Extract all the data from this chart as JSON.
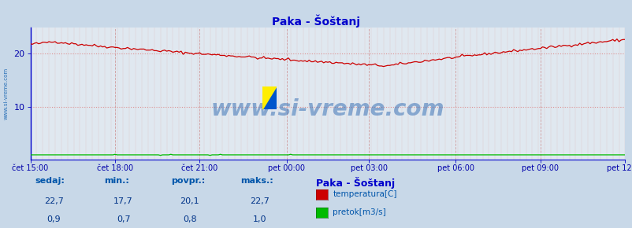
{
  "title": "Paka - Šoštanj",
  "bg_color": "#c8d8e8",
  "plot_bg_color": "#e0e8f0",
  "title_color": "#0000cc",
  "xlabel_color": "#0000aa",
  "ylabel_color": "#0000aa",
  "x_tick_labels": [
    "čet 15:00",
    "čet 18:00",
    "čet 21:00",
    "pet 00:00",
    "pet 03:00",
    "pet 06:00",
    "pet 09:00",
    "pet 12:00"
  ],
  "x_tick_positions_frac": [
    0.0,
    0.143,
    0.286,
    0.429,
    0.571,
    0.714,
    0.857,
    1.0
  ],
  "ylim": [
    0,
    25
  ],
  "y_ticks": [
    10,
    20
  ],
  "temp_color": "#cc0000",
  "flow_color": "#00bb00",
  "dotted_line_values": [
    10.0,
    20.0
  ],
  "watermark": "www.si-vreme.com",
  "watermark_color": "#1a5aaa",
  "footer_label_color": "#0055aa",
  "footer_value_color": "#003388",
  "sedaj_temp": "22,7",
  "min_temp": "17,7",
  "povpr_temp": "20,1",
  "maks_temp": "22,7",
  "sedaj_flow": "0,9",
  "min_flow": "0,7",
  "povpr_flow": "0,8",
  "maks_flow": "1,0",
  "n_points": 289,
  "vgrid_major_color": "#cc8888",
  "vgrid_minor_color": "#ddaaaa",
  "hgrid_color": "#dd8888",
  "border_color": "#0000cc",
  "sidebar_text": "www.si-vreme.com",
  "sidebar_color": "#0055aa"
}
